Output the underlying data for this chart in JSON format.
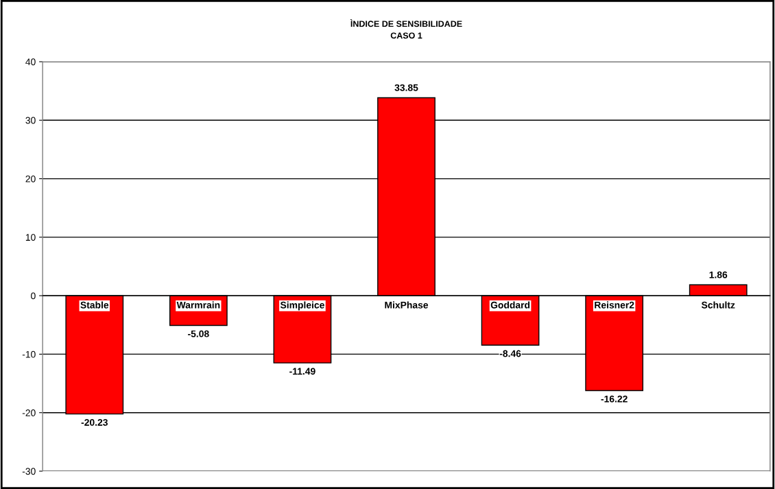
{
  "chart_data": {
    "type": "bar",
    "title": "ÌNDICE DE SENSIBILIDADE\nCASO 1",
    "categories": [
      "Stable",
      "Warmrain",
      "Simpleice",
      "MixPhase",
      "Goddard",
      "Reisner2",
      "Schultz"
    ],
    "values": [
      -20.23,
      -5.08,
      -11.49,
      33.85,
      -8.46,
      -16.22,
      1.86
    ],
    "color": "#ff0000",
    "ylim": [
      -30,
      40
    ],
    "yticks": [
      -30,
      -20,
      -10,
      0,
      10,
      20,
      30,
      40
    ],
    "grid": "y",
    "data_labels": true
  }
}
